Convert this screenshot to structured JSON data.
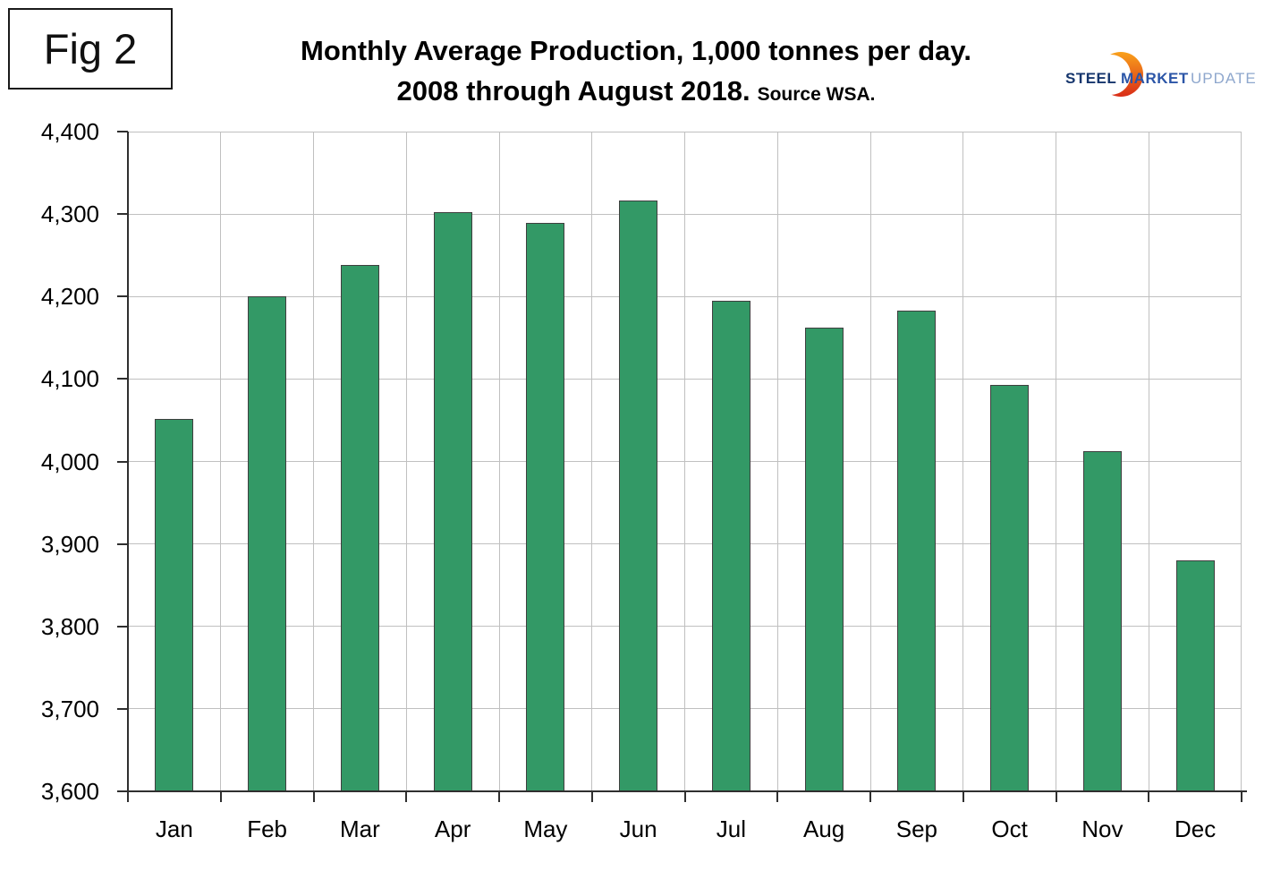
{
  "figure_label": "Fig 2",
  "logo": {
    "steel": "STEEL",
    "market": "MARKET",
    "update": "UPDATE",
    "steel_color": "#16366D",
    "market_color": "#2B55A7",
    "update_color": "#8EA7CD",
    "crescent_top_color": "#F9A11B",
    "crescent_bottom_color": "#D92C17"
  },
  "chart_data": {
    "type": "bar",
    "title": "Monthly Average Production, 1,000 tonnes per day.",
    "subtitle": "2008 through August 2018.",
    "source": "Source WSA.",
    "categories": [
      "Jan",
      "Feb",
      "Mar",
      "Apr",
      "May",
      "Jun",
      "Jul",
      "Aug",
      "Sep",
      "Oct",
      "Nov",
      "Dec"
    ],
    "values": [
      4052,
      4200,
      4238,
      4302,
      4289,
      4316,
      4195,
      4162,
      4183,
      4093,
      4013,
      3880
    ],
    "xlabel": "",
    "ylabel": "",
    "ylim": [
      3600,
      4400
    ],
    "ytick_step": 100,
    "ytick_labels": [
      "3,600",
      "3,700",
      "3,800",
      "3,900",
      "4,000",
      "4,100",
      "4,200",
      "4,300",
      "4,400"
    ],
    "grid": true,
    "legend_position": "none",
    "bar_color": "#339966",
    "bar_border_color": "#3F3F3F",
    "grid_color": "#C0C0C0",
    "axis_color": "#2F2F2F"
  }
}
